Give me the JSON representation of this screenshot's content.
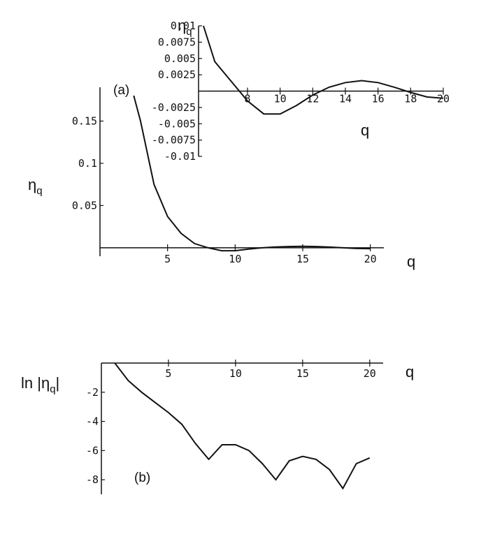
{
  "chart_data": [
    {
      "id": "a-main",
      "type": "line",
      "panel_label": "(a)",
      "xlabel": "q",
      "ylabel": "η",
      "ylabel_sub": "q",
      "xlim": [
        0,
        21
      ],
      "ylim": [
        -0.01,
        0.19
      ],
      "xticks": [
        {
          "v": 5,
          "t": "5"
        },
        {
          "v": 10,
          "t": "10"
        },
        {
          "v": 15,
          "t": "15"
        },
        {
          "v": 20,
          "t": "20"
        }
      ],
      "yticks": [
        {
          "v": 0.05,
          "t": "0.05"
        },
        {
          "v": 0.1,
          "t": "0.1"
        },
        {
          "v": 0.15,
          "t": "0.15"
        }
      ],
      "x": [
        2.5,
        3,
        4,
        5,
        6,
        7,
        8,
        9,
        10,
        11,
        12,
        13,
        14,
        15,
        16,
        17,
        18,
        19,
        20
      ],
      "y": [
        0.19,
        0.15,
        0.075,
        0.037,
        0.017,
        0.005,
        0.0,
        -0.0035,
        -0.0035,
        -0.0015,
        0.0,
        0.001,
        0.0015,
        0.0018,
        0.0015,
        0.0008,
        0.0,
        -0.0008,
        -0.001
      ]
    },
    {
      "id": "a-inset",
      "type": "line",
      "xlabel": "q",
      "ylabel": "η",
      "ylabel_sub": "q",
      "xlim": [
        5,
        20
      ],
      "ylim": [
        -0.01,
        0.01
      ],
      "xticks": [
        {
          "v": 8,
          "t": "8"
        },
        {
          "v": 10,
          "t": "10"
        },
        {
          "v": 12,
          "t": "12"
        },
        {
          "v": 14,
          "t": "14"
        },
        {
          "v": 16,
          "t": "16"
        },
        {
          "v": 18,
          "t": "18"
        },
        {
          "v": 20,
          "t": "20"
        }
      ],
      "yticks": [
        {
          "v": 0.01,
          "t": "0.01"
        },
        {
          "v": 0.0075,
          "t": "0.0075"
        },
        {
          "v": 0.005,
          "t": "0.005"
        },
        {
          "v": 0.0025,
          "t": "0.0025"
        },
        {
          "v": -0.0025,
          "t": "-0.0025"
        },
        {
          "v": -0.005,
          "t": "-0.005"
        },
        {
          "v": -0.0075,
          "t": "-0.0075"
        },
        {
          "v": -0.01,
          "t": "-0.01"
        }
      ],
      "x": [
        5.3,
        6,
        7,
        8,
        9,
        10,
        11,
        12,
        13,
        14,
        15,
        16,
        17,
        18,
        19,
        20
      ],
      "y": [
        0.01,
        0.0045,
        0.0015,
        -0.0015,
        -0.0035,
        -0.0035,
        -0.0022,
        -0.0006,
        0.0006,
        0.0013,
        0.0016,
        0.0013,
        0.0006,
        -0.0002,
        -0.0009,
        -0.0011
      ]
    },
    {
      "id": "b",
      "type": "line",
      "panel_label": "(b)",
      "xlabel": "q",
      "ylabel": "ln |η",
      "ylabel_sub": "q",
      "ylabel_suffix": "|",
      "xlim": [
        0,
        21
      ],
      "ylim": [
        -9,
        0
      ],
      "xticks": [
        {
          "v": 5,
          "t": "5"
        },
        {
          "v": 10,
          "t": "10"
        },
        {
          "v": 15,
          "t": "15"
        },
        {
          "v": 20,
          "t": "20"
        }
      ],
      "yticks": [
        {
          "v": -2,
          "t": "-2"
        },
        {
          "v": -4,
          "t": "-4"
        },
        {
          "v": -6,
          "t": "-6"
        },
        {
          "v": -8,
          "t": "-8"
        }
      ],
      "x": [
        1,
        2,
        3,
        4,
        5,
        6,
        7,
        8,
        9,
        10,
        11,
        12,
        13,
        14,
        15,
        16,
        17,
        18,
        19,
        20
      ],
      "y": [
        0,
        -1.2,
        -2.0,
        -2.7,
        -3.4,
        -4.2,
        -5.5,
        -6.6,
        -5.6,
        -5.6,
        -6.0,
        -6.9,
        -8.0,
        -6.7,
        -6.4,
        -6.6,
        -7.3,
        -8.6,
        -6.9,
        -6.5
      ]
    }
  ]
}
